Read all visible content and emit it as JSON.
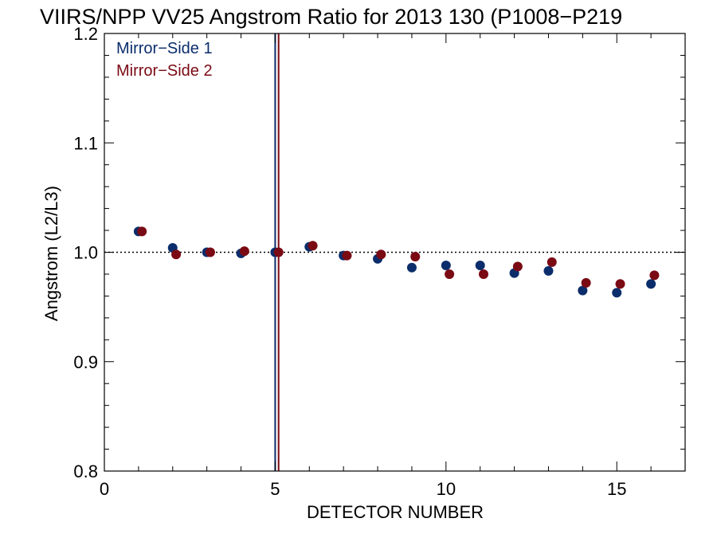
{
  "chart_data": {
    "type": "scatter",
    "title": "VIIRS/NPP VV25 Angstrom Ratio for 2013 130 (P1008−P219",
    "xlabel": "DETECTOR NUMBER",
    "ylabel": "Angstrom (L2/L3)",
    "xlim": [
      0,
      17
    ],
    "ylim": [
      0.8,
      1.2
    ],
    "x_ticks": [
      0,
      5,
      10,
      15
    ],
    "x_tick_labels": [
      "0",
      "5",
      "10",
      "15"
    ],
    "y_ticks": [
      0.8,
      0.9,
      1.0,
      1.1,
      1.2
    ],
    "y_tick_labels": [
      "0.8",
      "0.9",
      "1.0",
      "1.1",
      "1.2"
    ],
    "grid": false,
    "legend_position": "top-left",
    "reference_line": {
      "y": 1.0,
      "style": "dotted",
      "color": "#000000"
    },
    "vertical_lines": [
      {
        "x": 5.0,
        "color": "#0b2d6b"
      },
      {
        "x": 5.1,
        "color": "#7a0a14"
      }
    ],
    "series": [
      {
        "name": "Mirror−Side 1",
        "color": "#0b2d6b",
        "x": [
          1,
          2,
          3,
          4,
          5,
          6,
          7,
          8,
          9,
          10,
          11,
          12,
          13,
          14,
          15,
          16
        ],
        "values": [
          1.019,
          1.004,
          1.0,
          0.999,
          1.0,
          1.005,
          0.997,
          0.994,
          0.986,
          0.988,
          0.988,
          0.981,
          0.983,
          0.965,
          0.963,
          0.971
        ]
      },
      {
        "name": "Mirror−Side 2",
        "color": "#7a0a14",
        "x": [
          1.1,
          2.1,
          3.1,
          4.1,
          5.1,
          6.1,
          7.1,
          8.1,
          9.1,
          10.1,
          11.1,
          12.1,
          13.1,
          14.1,
          15.1,
          16.1
        ],
        "values": [
          1.019,
          0.998,
          1.0,
          1.001,
          1.0,
          1.006,
          0.997,
          0.998,
          0.996,
          0.98,
          0.98,
          0.987,
          0.991,
          0.972,
          0.971,
          0.979
        ]
      }
    ]
  }
}
